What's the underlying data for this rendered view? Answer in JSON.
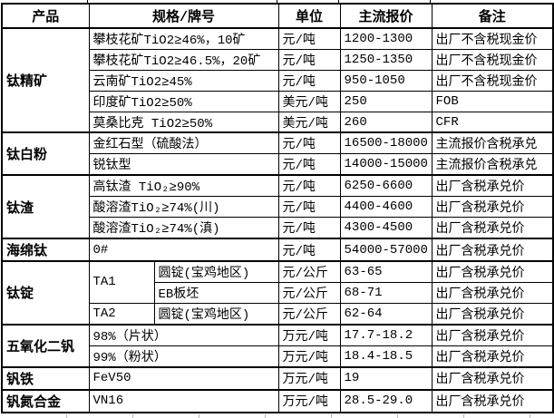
{
  "colors": {
    "background": "#ffffff",
    "border": "#000000",
    "text": "#000000",
    "gridline_artifact_gray": "#b8b8b8"
  },
  "table": {
    "header": [
      {
        "kind": "product",
        "text": "产品"
      },
      {
        "kind": "spec",
        "text": "规格/牌号",
        "cs": 2
      },
      {
        "kind": "unit",
        "text": "单位"
      },
      {
        "kind": "price",
        "text": "主流报价"
      },
      {
        "kind": "note",
        "text": "备注"
      }
    ],
    "rows": [
      [
        {
          "kind": "product",
          "text": "钛精矿",
          "rs": 5
        },
        {
          "kind": "spec",
          "text": "攀枝花矿TiO2≥46%，10矿",
          "cs": 2
        },
        {
          "kind": "unit",
          "text": "元/吨"
        },
        {
          "kind": "price",
          "text": "1200-1300"
        },
        {
          "kind": "note",
          "text": "出厂不含税现金价"
        }
      ],
      [
        {
          "kind": "spec",
          "text": "攀枝花矿TiO2≥46.5%，20矿",
          "cs": 2
        },
        {
          "kind": "unit",
          "text": "元/吨"
        },
        {
          "kind": "price",
          "text": "1250-1350"
        },
        {
          "kind": "note",
          "text": "出厂不含税现金价"
        }
      ],
      [
        {
          "kind": "spec",
          "text": "云南矿TiO2≥45%",
          "cs": 2
        },
        {
          "kind": "unit",
          "text": "元/吨"
        },
        {
          "kind": "price",
          "text": "950-1050"
        },
        {
          "kind": "note",
          "text": "出厂不含税现金价"
        }
      ],
      [
        {
          "kind": "spec",
          "text": "印度矿TiO2≥50%",
          "cs": 2
        },
        {
          "kind": "unit",
          "text": "美元/吨"
        },
        {
          "kind": "price",
          "text": "250"
        },
        {
          "kind": "note",
          "text": "FOB"
        }
      ],
      [
        {
          "kind": "spec",
          "text": "莫桑比克 TiO2≥50%",
          "cs": 2
        },
        {
          "kind": "unit",
          "text": "美元/吨"
        },
        {
          "kind": "price",
          "text": "260"
        },
        {
          "kind": "note",
          "text": "CFR"
        }
      ],
      [
        {
          "kind": "product",
          "text": "钛白粉",
          "rs": 2
        },
        {
          "kind": "spec",
          "text": "金红石型（硫酸法）",
          "cs": 2
        },
        {
          "kind": "unit",
          "text": "元/吨"
        },
        {
          "kind": "price",
          "text": "16500-18000"
        },
        {
          "kind": "note",
          "text": "主流报价含税承兑"
        }
      ],
      [
        {
          "kind": "spec",
          "text": "锐钛型",
          "cs": 2
        },
        {
          "kind": "unit",
          "text": "元/吨"
        },
        {
          "kind": "price",
          "text": "14000-15000"
        },
        {
          "kind": "note",
          "text": "主流报价含税承兑"
        }
      ],
      [
        {
          "kind": "product",
          "text": "钛渣",
          "rs": 3
        },
        {
          "kind": "spec",
          "text": "高钛渣 TiO₂≥90%",
          "cs": 2
        },
        {
          "kind": "unit",
          "text": "元/吨"
        },
        {
          "kind": "price",
          "text": "6250-6600"
        },
        {
          "kind": "note",
          "text": "出厂含税承兑价"
        }
      ],
      [
        {
          "kind": "spec",
          "text": "酸溶渣TiO₂≥74%(川)",
          "cs": 2
        },
        {
          "kind": "unit",
          "text": "元/吨"
        },
        {
          "kind": "price",
          "text": "4400-4600"
        },
        {
          "kind": "note",
          "text": "出厂含税承兑价"
        }
      ],
      [
        {
          "kind": "spec",
          "text": "酸溶渣TiO₂≥74%(滇)",
          "cs": 2
        },
        {
          "kind": "unit",
          "text": "元/吨"
        },
        {
          "kind": "price",
          "text": "4300-4500"
        },
        {
          "kind": "note",
          "text": "出厂含税承兑价"
        }
      ],
      [
        {
          "kind": "product",
          "text": "海绵钛"
        },
        {
          "kind": "spec",
          "text": "0#",
          "cs": 2
        },
        {
          "kind": "unit",
          "text": "元/吨"
        },
        {
          "kind": "price",
          "text": "54000-57000"
        },
        {
          "kind": "note",
          "text": "出厂含税承兑价"
        }
      ],
      [
        {
          "kind": "product",
          "text": "钛锭",
          "rs": 3
        },
        {
          "kind": "spec",
          "text": "TA1",
          "rs": 2
        },
        {
          "kind": "spec",
          "text": "圆锭(宝鸡地区)"
        },
        {
          "kind": "unit",
          "text": "元/公斤"
        },
        {
          "kind": "price",
          "text": "63-65"
        },
        {
          "kind": "note",
          "text": "出厂含税承兑价"
        }
      ],
      [
        {
          "kind": "spec",
          "text": "EB板坯"
        },
        {
          "kind": "unit",
          "text": "元/公斤"
        },
        {
          "kind": "price",
          "text": "68-71"
        },
        {
          "kind": "note",
          "text": "出厂含税承兑价"
        }
      ],
      [
        {
          "kind": "spec",
          "text": "TA2"
        },
        {
          "kind": "spec",
          "text": "圆锭(宝鸡地区)"
        },
        {
          "kind": "unit",
          "text": "元/公斤"
        },
        {
          "kind": "price",
          "text": "62-64"
        },
        {
          "kind": "note",
          "text": "出厂含税承兑价"
        }
      ],
      [
        {
          "kind": "product",
          "text": "五氧化二钒",
          "rs": 2
        },
        {
          "kind": "spec",
          "text": "98%（片状）",
          "cs": 2
        },
        {
          "kind": "unit",
          "text": "万元/吨"
        },
        {
          "kind": "price",
          "text": "17.7-18.2"
        },
        {
          "kind": "note",
          "text": "出厂含税承兑价"
        }
      ],
      [
        {
          "kind": "spec",
          "text": "99%（粉状）",
          "cs": 2
        },
        {
          "kind": "unit",
          "text": "万元/吨"
        },
        {
          "kind": "price",
          "text": "18.4-18.5"
        },
        {
          "kind": "note",
          "text": "出厂含税承兑价"
        }
      ],
      [
        {
          "kind": "product",
          "text": "钒铁"
        },
        {
          "kind": "spec",
          "text": "FeV50",
          "cs": 2
        },
        {
          "kind": "unit",
          "text": "万元/吨"
        },
        {
          "kind": "price",
          "text": "19"
        },
        {
          "kind": "note",
          "text": "出厂含税承兑价"
        }
      ],
      [
        {
          "kind": "product",
          "text": "钒氮合金"
        },
        {
          "kind": "spec",
          "text": "VN16",
          "cs": 2
        },
        {
          "kind": "unit",
          "text": "万元/吨"
        },
        {
          "kind": "price",
          "text": "28.5-29.0"
        },
        {
          "kind": "note",
          "text": "出厂含税承兑价"
        }
      ]
    ]
  }
}
